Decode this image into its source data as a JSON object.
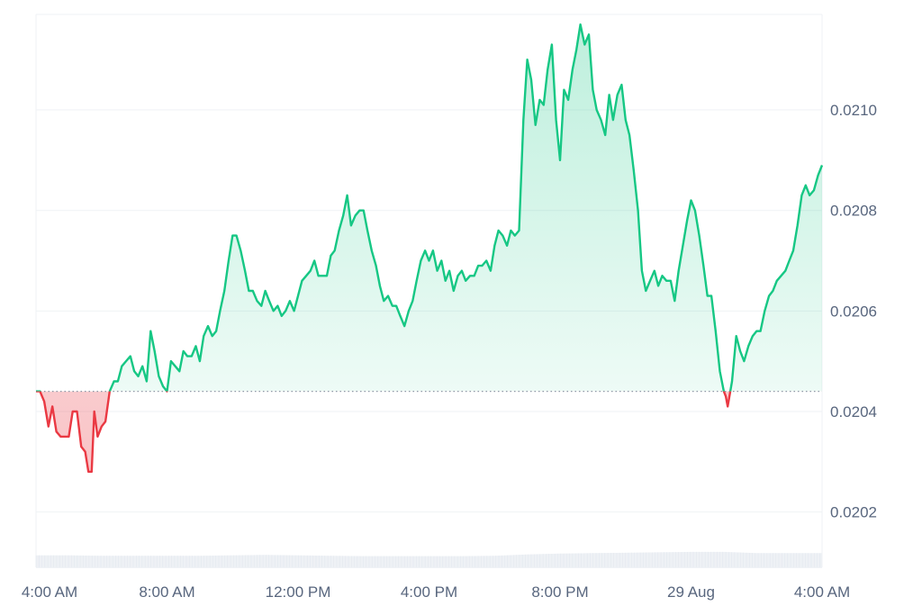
{
  "chart_data": {
    "type": "area",
    "baseline": 0.02044,
    "ylim": [
      0.02009,
      0.02119
    ],
    "y_ticks": [
      0.0202,
      0.0204,
      0.0206,
      0.0208,
      0.021
    ],
    "y_tick_labels": [
      "0.0202",
      "0.0204",
      "0.0206",
      "0.0208",
      "0.0210"
    ],
    "x_range_hours": [
      0,
      24
    ],
    "x_ticks": [
      0,
      4,
      8,
      12,
      16,
      20,
      24
    ],
    "x_tick_labels": [
      "4:00 AM",
      "8:00 AM",
      "12:00 PM",
      "4:00 PM",
      "8:00 PM",
      "29 Aug",
      "4:00 AM"
    ],
    "colors": {
      "up": "#16c784",
      "down": "#ea3943",
      "grid": "#eff2f5",
      "volume": "#e3e8ef"
    },
    "series": [
      {
        "values": [
          [
            0.0,
            0.02044
          ],
          [
            0.12,
            0.02044
          ],
          [
            0.25,
            0.02042
          ],
          [
            0.38,
            0.02037
          ],
          [
            0.5,
            0.02041
          ],
          [
            0.62,
            0.02036
          ],
          [
            0.75,
            0.02035
          ],
          [
            0.88,
            0.02035
          ],
          [
            1.0,
            0.02035
          ],
          [
            1.12,
            0.0204
          ],
          [
            1.25,
            0.0204
          ],
          [
            1.38,
            0.02033
          ],
          [
            1.5,
            0.02032
          ],
          [
            1.6,
            0.02028
          ],
          [
            1.7,
            0.02028
          ],
          [
            1.78,
            0.0204
          ],
          [
            1.88,
            0.02035
          ],
          [
            2.0,
            0.02037
          ],
          [
            2.12,
            0.02038
          ],
          [
            2.25,
            0.02044
          ],
          [
            2.38,
            0.02046
          ],
          [
            2.5,
            0.02046
          ],
          [
            2.62,
            0.02049
          ],
          [
            2.75,
            0.0205
          ],
          [
            2.88,
            0.02051
          ],
          [
            3.0,
            0.02048
          ],
          [
            3.12,
            0.02047
          ],
          [
            3.25,
            0.02049
          ],
          [
            3.38,
            0.02046
          ],
          [
            3.5,
            0.02056
          ],
          [
            3.62,
            0.02052
          ],
          [
            3.75,
            0.02047
          ],
          [
            3.88,
            0.02045
          ],
          [
            4.0,
            0.02044
          ],
          [
            4.12,
            0.0205
          ],
          [
            4.25,
            0.02049
          ],
          [
            4.38,
            0.02048
          ],
          [
            4.5,
            0.02052
          ],
          [
            4.62,
            0.02051
          ],
          [
            4.75,
            0.02051
          ],
          [
            4.88,
            0.02053
          ],
          [
            5.0,
            0.0205
          ],
          [
            5.12,
            0.02055
          ],
          [
            5.25,
            0.02057
          ],
          [
            5.38,
            0.02055
          ],
          [
            5.5,
            0.02056
          ],
          [
            5.62,
            0.0206
          ],
          [
            5.75,
            0.02064
          ],
          [
            5.88,
            0.0207
          ],
          [
            6.0,
            0.02075
          ],
          [
            6.12,
            0.02075
          ],
          [
            6.25,
            0.02072
          ],
          [
            6.38,
            0.02068
          ],
          [
            6.5,
            0.02064
          ],
          [
            6.62,
            0.02064
          ],
          [
            6.75,
            0.02062
          ],
          [
            6.88,
            0.02061
          ],
          [
            7.0,
            0.02064
          ],
          [
            7.12,
            0.02062
          ],
          [
            7.25,
            0.0206
          ],
          [
            7.38,
            0.02061
          ],
          [
            7.5,
            0.02059
          ],
          [
            7.62,
            0.0206
          ],
          [
            7.75,
            0.02062
          ],
          [
            7.88,
            0.0206
          ],
          [
            8.0,
            0.02063
          ],
          [
            8.12,
            0.02066
          ],
          [
            8.25,
            0.02067
          ],
          [
            8.38,
            0.02068
          ],
          [
            8.5,
            0.0207
          ],
          [
            8.62,
            0.02067
          ],
          [
            8.75,
            0.02067
          ],
          [
            8.88,
            0.02067
          ],
          [
            9.0,
            0.02071
          ],
          [
            9.12,
            0.02072
          ],
          [
            9.25,
            0.02076
          ],
          [
            9.38,
            0.02079
          ],
          [
            9.5,
            0.02083
          ],
          [
            9.62,
            0.02077
          ],
          [
            9.75,
            0.02079
          ],
          [
            9.88,
            0.0208
          ],
          [
            10.0,
            0.0208
          ],
          [
            10.12,
            0.02076
          ],
          [
            10.25,
            0.02072
          ],
          [
            10.38,
            0.02069
          ],
          [
            10.5,
            0.02065
          ],
          [
            10.62,
            0.02062
          ],
          [
            10.75,
            0.02063
          ],
          [
            10.88,
            0.02061
          ],
          [
            11.0,
            0.02061
          ],
          [
            11.12,
            0.02059
          ],
          [
            11.25,
            0.02057
          ],
          [
            11.38,
            0.0206
          ],
          [
            11.5,
            0.02062
          ],
          [
            11.62,
            0.02066
          ],
          [
            11.75,
            0.0207
          ],
          [
            11.88,
            0.02072
          ],
          [
            12.0,
            0.0207
          ],
          [
            12.12,
            0.02072
          ],
          [
            12.25,
            0.02068
          ],
          [
            12.38,
            0.0207
          ],
          [
            12.5,
            0.02066
          ],
          [
            12.62,
            0.02068
          ],
          [
            12.75,
            0.02064
          ],
          [
            12.88,
            0.02067
          ],
          [
            13.0,
            0.02068
          ],
          [
            13.12,
            0.02066
          ],
          [
            13.25,
            0.02067
          ],
          [
            13.38,
            0.02067
          ],
          [
            13.5,
            0.02069
          ],
          [
            13.62,
            0.02069
          ],
          [
            13.75,
            0.0207
          ],
          [
            13.88,
            0.02068
          ],
          [
            14.0,
            0.02073
          ],
          [
            14.12,
            0.02076
          ],
          [
            14.25,
            0.02075
          ],
          [
            14.38,
            0.02073
          ],
          [
            14.5,
            0.02076
          ],
          [
            14.62,
            0.02075
          ],
          [
            14.75,
            0.02076
          ],
          [
            14.88,
            0.02098
          ],
          [
            15.0,
            0.0211
          ],
          [
            15.12,
            0.02106
          ],
          [
            15.25,
            0.02097
          ],
          [
            15.38,
            0.02102
          ],
          [
            15.5,
            0.02101
          ],
          [
            15.62,
            0.02108
          ],
          [
            15.75,
            0.02113
          ],
          [
            15.88,
            0.02098
          ],
          [
            16.0,
            0.0209
          ],
          [
            16.12,
            0.02104
          ],
          [
            16.25,
            0.02102
          ],
          [
            16.38,
            0.02108
          ],
          [
            16.5,
            0.02112
          ],
          [
            16.62,
            0.02117
          ],
          [
            16.75,
            0.02113
          ],
          [
            16.88,
            0.02115
          ],
          [
            17.0,
            0.02104
          ],
          [
            17.12,
            0.021
          ],
          [
            17.25,
            0.02098
          ],
          [
            17.38,
            0.02095
          ],
          [
            17.5,
            0.02103
          ],
          [
            17.62,
            0.02098
          ],
          [
            17.75,
            0.02103
          ],
          [
            17.88,
            0.02105
          ],
          [
            18.0,
            0.02098
          ],
          [
            18.12,
            0.02095
          ],
          [
            18.25,
            0.02088
          ],
          [
            18.38,
            0.0208
          ],
          [
            18.5,
            0.02068
          ],
          [
            18.62,
            0.02064
          ],
          [
            18.75,
            0.02066
          ],
          [
            18.88,
            0.02068
          ],
          [
            19.0,
            0.02065
          ],
          [
            19.12,
            0.02067
          ],
          [
            19.25,
            0.02066
          ],
          [
            19.38,
            0.02066
          ],
          [
            19.5,
            0.02062
          ],
          [
            19.62,
            0.02068
          ],
          [
            19.75,
            0.02073
          ],
          [
            19.88,
            0.02078
          ],
          [
            20.0,
            0.02082
          ],
          [
            20.12,
            0.0208
          ],
          [
            20.25,
            0.02075
          ],
          [
            20.38,
            0.02069
          ],
          [
            20.5,
            0.02063
          ],
          [
            20.62,
            0.02063
          ],
          [
            20.75,
            0.02056
          ],
          [
            20.88,
            0.02048
          ],
          [
            21.0,
            0.02044
          ],
          [
            21.06,
            0.02043
          ],
          [
            21.12,
            0.02041
          ],
          [
            21.25,
            0.02046
          ],
          [
            21.38,
            0.02055
          ],
          [
            21.5,
            0.02052
          ],
          [
            21.62,
            0.0205
          ],
          [
            21.75,
            0.02053
          ],
          [
            21.88,
            0.02055
          ],
          [
            22.0,
            0.02056
          ],
          [
            22.12,
            0.02056
          ],
          [
            22.25,
            0.0206
          ],
          [
            22.38,
            0.02063
          ],
          [
            22.5,
            0.02064
          ],
          [
            22.62,
            0.02066
          ],
          [
            22.75,
            0.02067
          ],
          [
            22.88,
            0.02068
          ],
          [
            23.0,
            0.0207
          ],
          [
            23.12,
            0.02072
          ],
          [
            23.25,
            0.02077
          ],
          [
            23.38,
            0.02083
          ],
          [
            23.5,
            0.02085
          ],
          [
            23.62,
            0.02083
          ],
          [
            23.75,
            0.02084
          ],
          [
            23.88,
            0.02087
          ],
          [
            24.0,
            0.02089
          ]
        ]
      }
    ],
    "volume_ylim": [
      0,
      1
    ],
    "volume": [
      [
        0.0,
        0.14
      ],
      [
        1.0,
        0.14
      ],
      [
        2.0,
        0.135
      ],
      [
        3.0,
        0.135
      ],
      [
        4.0,
        0.135
      ],
      [
        5.0,
        0.135
      ],
      [
        6.0,
        0.14
      ],
      [
        7.0,
        0.145
      ],
      [
        8.0,
        0.14
      ],
      [
        9.0,
        0.135
      ],
      [
        10.0,
        0.13
      ],
      [
        11.0,
        0.13
      ],
      [
        12.0,
        0.13
      ],
      [
        13.0,
        0.13
      ],
      [
        14.0,
        0.135
      ],
      [
        15.0,
        0.15
      ],
      [
        16.0,
        0.16
      ],
      [
        17.0,
        0.165
      ],
      [
        18.0,
        0.17
      ],
      [
        19.0,
        0.175
      ],
      [
        20.0,
        0.18
      ],
      [
        21.0,
        0.18
      ],
      [
        22.0,
        0.165
      ],
      [
        23.0,
        0.165
      ],
      [
        24.0,
        0.165
      ]
    ],
    "grid": true,
    "legend": "none"
  }
}
